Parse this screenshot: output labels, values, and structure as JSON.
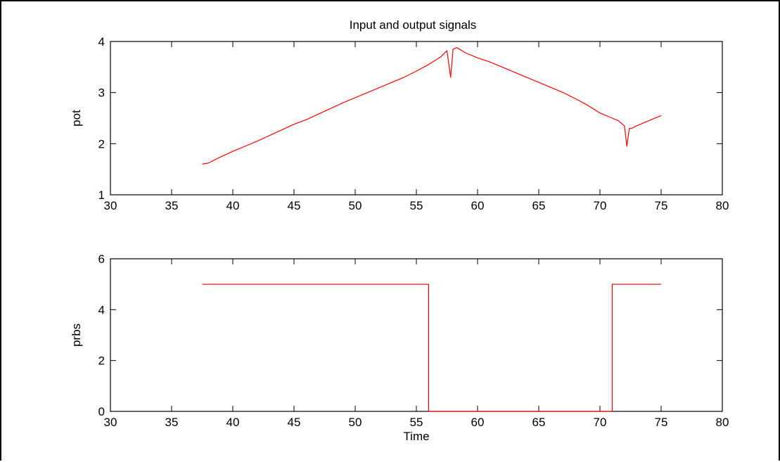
{
  "figure": {
    "title": "Input and output signals"
  },
  "chart_data": [
    {
      "type": "line",
      "title": "Input and output signals",
      "xlabel": "",
      "ylabel": "pot",
      "xlim": [
        30,
        80
      ],
      "ylim": [
        1,
        4
      ],
      "xticks": [
        30,
        35,
        40,
        45,
        50,
        55,
        60,
        65,
        70,
        75,
        80
      ],
      "yticks": [
        1,
        2,
        3,
        4
      ],
      "grid": false,
      "line_color": "#ff0000",
      "series": [
        {
          "x": [
            37.5,
            38.0,
            39.0,
            40.0,
            41.0,
            42.0,
            43.0,
            44.0,
            45.0,
            46.0,
            47.0,
            48.0,
            49.0,
            50.0,
            51.0,
            52.0,
            53.0,
            54.0,
            55.0,
            56.0,
            57.0,
            57.5,
            57.8,
            58.0,
            58.3,
            59.0,
            60.0,
            61.0,
            62.0,
            63.0,
            64.0,
            65.0,
            66.0,
            67.0,
            68.0,
            69.0,
            70.0,
            71.0,
            71.5,
            72.0,
            72.2,
            72.4,
            72.6,
            73.0,
            74.0,
            75.0
          ],
          "y": [
            1.6,
            1.62,
            1.74,
            1.85,
            1.95,
            2.05,
            2.16,
            2.27,
            2.38,
            2.47,
            2.58,
            2.69,
            2.8,
            2.9,
            3.0,
            3.1,
            3.2,
            3.3,
            3.42,
            3.55,
            3.7,
            3.82,
            3.3,
            3.85,
            3.88,
            3.78,
            3.68,
            3.6,
            3.5,
            3.4,
            3.3,
            3.2,
            3.1,
            3.0,
            2.88,
            2.75,
            2.6,
            2.5,
            2.45,
            2.35,
            1.95,
            2.3,
            2.3,
            2.35,
            2.45,
            2.55
          ]
        }
      ]
    },
    {
      "type": "line",
      "title": "",
      "xlabel": "Time",
      "ylabel": "prbs",
      "xlim": [
        30,
        80
      ],
      "ylim": [
        0,
        6
      ],
      "xticks": [
        30,
        35,
        40,
        45,
        50,
        55,
        60,
        65,
        70,
        75,
        80
      ],
      "yticks": [
        0,
        2,
        4,
        6
      ],
      "grid": false,
      "line_color": "#ff0000",
      "series": [
        {
          "x": [
            37.5,
            56.0,
            56.0,
            71.0,
            71.0,
            75.0
          ],
          "y": [
            5,
            5,
            0,
            0,
            5,
            5
          ]
        }
      ]
    }
  ]
}
